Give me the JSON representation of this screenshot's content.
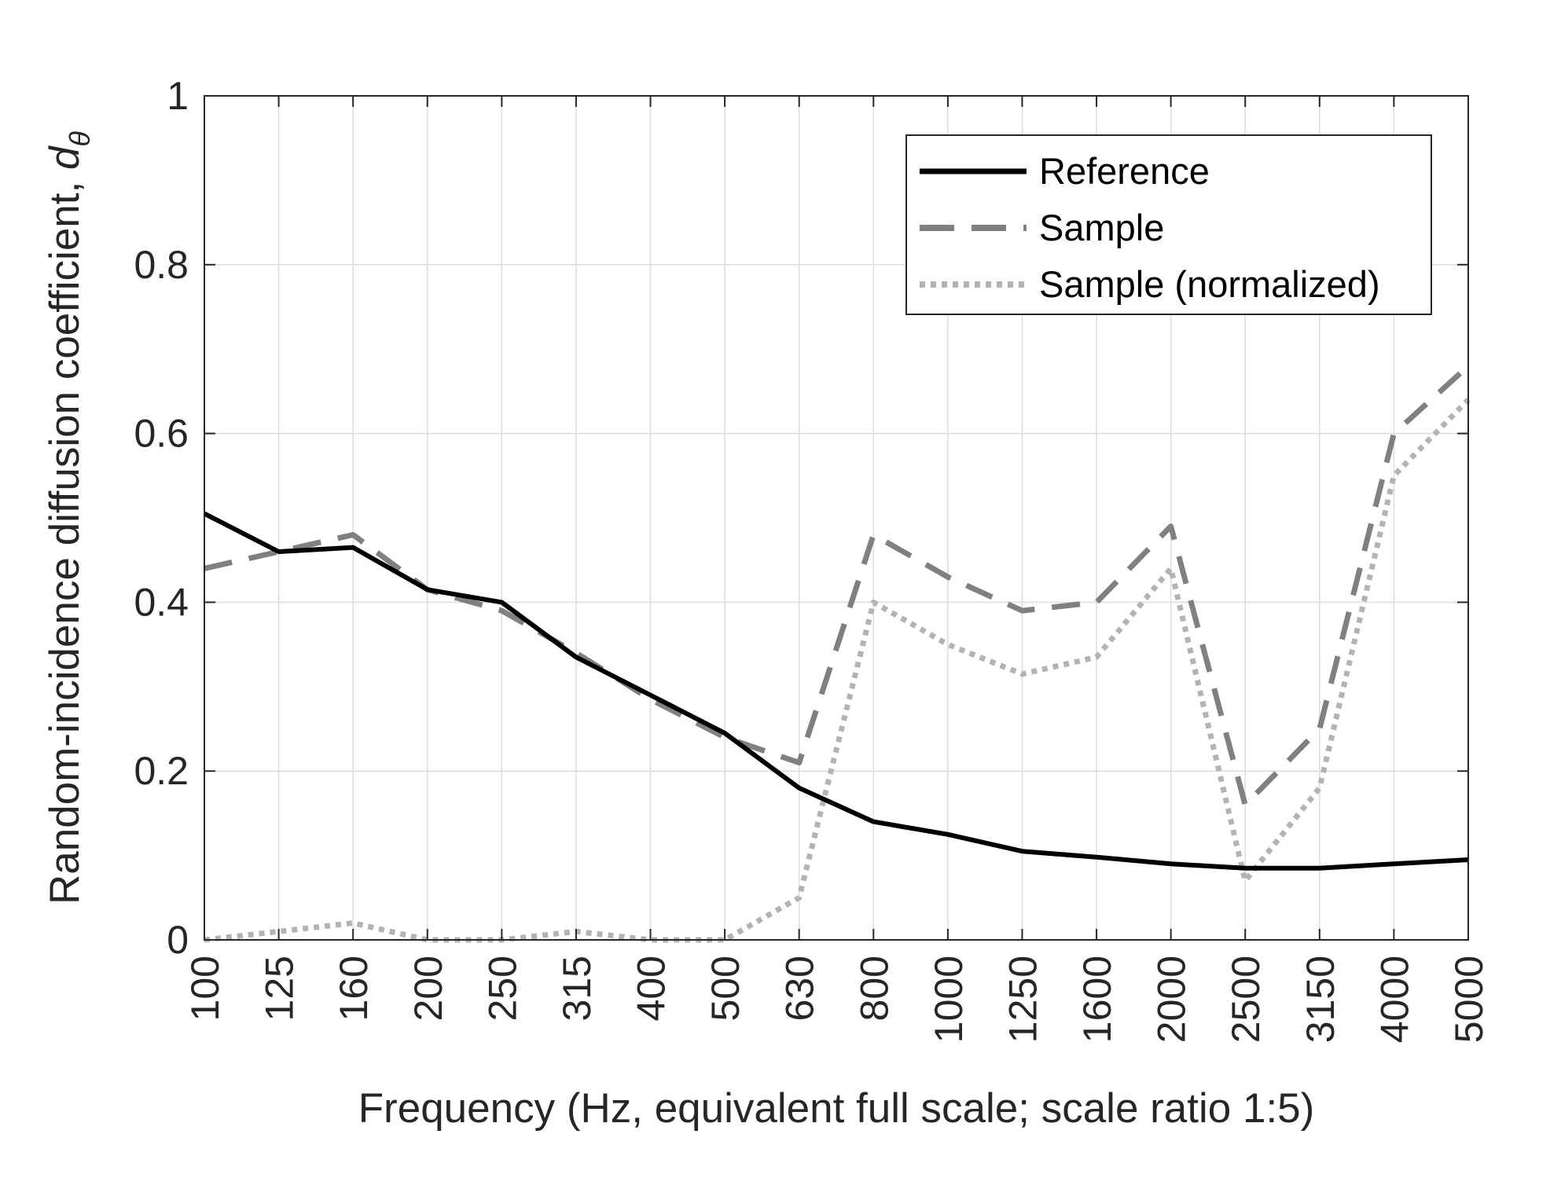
{
  "chart_data": {
    "type": "line",
    "xlabel": "Frequency (Hz, equivalent full scale; scale ratio 1:5)",
    "ylabel": "Random-incidence diffusion coefficient, ",
    "ylabel_symbol": "d",
    "ylabel_subscript": "θ",
    "categories": [
      "100",
      "125",
      "160",
      "200",
      "250",
      "315",
      "400",
      "500",
      "630",
      "800",
      "1000",
      "1250",
      "1600",
      "2000",
      "2500",
      "3150",
      "4000",
      "5000"
    ],
    "ylim": [
      0,
      1
    ],
    "yticks": [
      "0",
      "0.2",
      "0.4",
      "0.6",
      "0.8",
      "1"
    ],
    "ytick_values": [
      0,
      0.2,
      0.4,
      0.6,
      0.8,
      1
    ],
    "grid": true,
    "legend_position": "top-right",
    "series": [
      {
        "name": "Reference",
        "style": "solid",
        "color": "#000000",
        "values": [
          0.505,
          0.46,
          0.465,
          0.415,
          0.4,
          0.335,
          0.29,
          0.245,
          0.18,
          0.14,
          0.125,
          0.105,
          0.098,
          0.09,
          0.085,
          0.085,
          0.09,
          0.095
        ]
      },
      {
        "name": "Sample",
        "style": "dashed",
        "color": "#808080",
        "values": [
          0.44,
          0.46,
          0.48,
          0.415,
          0.39,
          0.34,
          0.285,
          0.24,
          0.21,
          0.48,
          0.43,
          0.39,
          0.4,
          0.49,
          0.16,
          0.25,
          0.6,
          0.68
        ]
      },
      {
        "name": "Sample (normalized)",
        "style": "dotted",
        "color": "#b3b3b3",
        "values": [
          0.0,
          0.01,
          0.02,
          0.0,
          0.0,
          0.01,
          0.0,
          0.0,
          0.05,
          0.4,
          0.35,
          0.315,
          0.335,
          0.44,
          0.07,
          0.18,
          0.55,
          0.64
        ]
      }
    ]
  }
}
